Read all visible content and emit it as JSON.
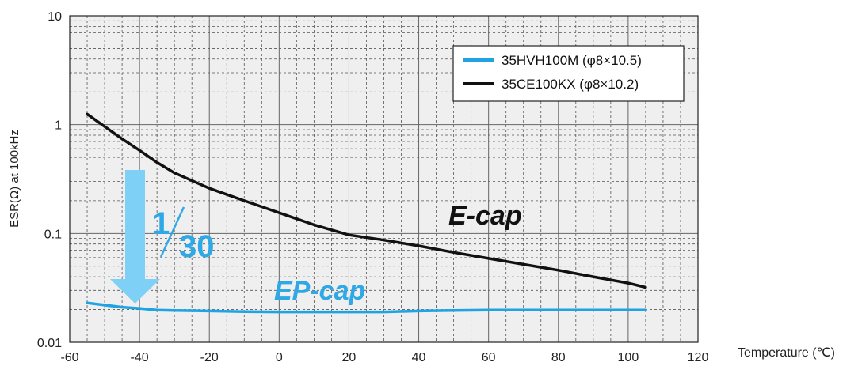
{
  "chart_data": {
    "type": "line",
    "title": "",
    "xlabel": "Temperature (℃)",
    "ylabel": "ESR(Ω) at 100kHz",
    "x_scale": "linear",
    "y_scale": "log",
    "xlim": [
      -60,
      120
    ],
    "ylim": [
      0.01,
      10
    ],
    "x_ticks": [
      "-60",
      "-40",
      "-20",
      "0",
      "20",
      "40",
      "60",
      "80",
      "100",
      "120"
    ],
    "y_ticks": [
      "0.01",
      "0.1",
      "1",
      "10"
    ],
    "grid": true,
    "legend_position": "top-right",
    "series": [
      {
        "name": "35HVH100M (φ8×10.5)",
        "color": "#1fa3e3",
        "x": [
          -55,
          -50,
          -45,
          -40,
          -35,
          -30,
          -20,
          -10,
          0,
          10,
          20,
          30,
          40,
          50,
          60,
          70,
          80,
          90,
          100,
          105
        ],
        "y": [
          0.023,
          0.022,
          0.021,
          0.0205,
          0.0198,
          0.0196,
          0.0194,
          0.0191,
          0.019,
          0.019,
          0.019,
          0.019,
          0.0194,
          0.0196,
          0.0198,
          0.0198,
          0.0198,
          0.0198,
          0.0198,
          0.0198
        ]
      },
      {
        "name": "35CE100KX (φ8×10.2)",
        "color": "#111111",
        "x": [
          -55,
          -50,
          -45,
          -40,
          -35,
          -30,
          -20,
          -10,
          0,
          10,
          20,
          30,
          40,
          50,
          60,
          70,
          80,
          90,
          100,
          105
        ],
        "y": [
          1.25,
          0.96,
          0.74,
          0.58,
          0.45,
          0.36,
          0.26,
          0.2,
          0.155,
          0.12,
          0.097,
          0.087,
          0.077,
          0.067,
          0.059,
          0.052,
          0.046,
          0.04,
          0.035,
          0.032
        ]
      }
    ],
    "annotations": {
      "ecap_label": "E-cap",
      "epcap_label": "EP-cap",
      "ratio_numerator": "1",
      "ratio_denominator": "30",
      "arrow_color": "#7fd0f7",
      "ratio_color": "#2fa8e6"
    },
    "colors": {
      "plot_background": "#efefef",
      "major_grid": "#666666",
      "minor_grid": "#555555"
    }
  }
}
